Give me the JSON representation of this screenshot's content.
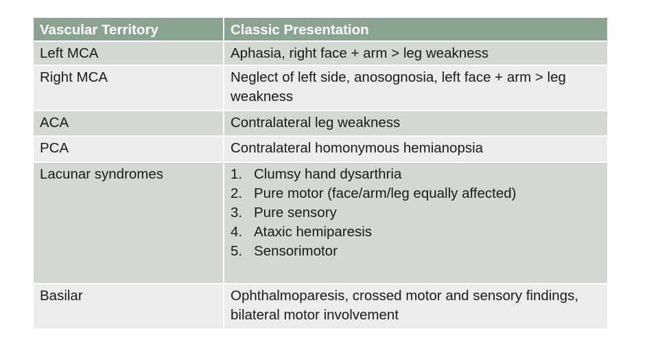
{
  "table": {
    "headers": [
      "Vascular Territory",
      "Classic Presentation"
    ],
    "rows": [
      {
        "territory": "Left MCA",
        "presentation": "Aphasia, right face + arm > leg weakness"
      },
      {
        "territory": "Right MCA",
        "presentation": "Neglect of left side, anosognosia, left face + arm > leg weakness"
      },
      {
        "territory": "ACA",
        "presentation": "Contralateral leg weakness"
      },
      {
        "territory": "PCA",
        "presentation": "Contralateral homonymous hemianopsia"
      },
      {
        "territory": "Lacunar syndromes",
        "list": [
          {
            "num": "1.",
            "text": "Clumsy hand dysarthria"
          },
          {
            "num": "2.",
            "text": "Pure motor (face/arm/leg equally affected)"
          },
          {
            "num": "3.",
            "text": "Pure sensory"
          },
          {
            "num": "4.",
            "text": "Ataxic hemiparesis"
          },
          {
            "num": "5.",
            "text": "Sensorimotor"
          }
        ]
      },
      {
        "territory": "Basilar",
        "presentation": "Ophthalmoparesis, crossed motor and sensory findings, bilateral motor involvement"
      }
    ]
  },
  "colors": {
    "header_bg": "#8aa48f",
    "row_dark": "#d5d7d5",
    "row_light": "#ececec"
  }
}
